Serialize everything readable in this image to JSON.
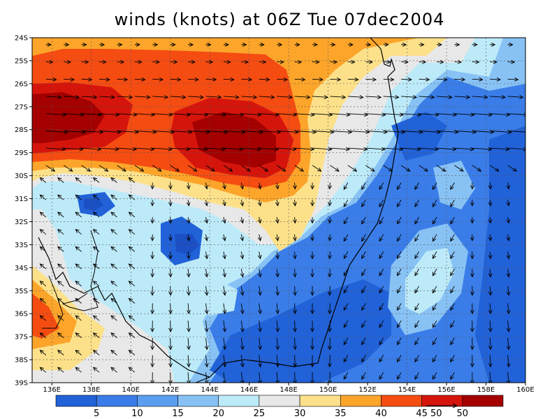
{
  "title": "winds (knots) at 06Z Tue 07dec2004",
  "map": {
    "lat_labels": [
      "24S",
      "25S",
      "26S",
      "27S",
      "28S",
      "29S",
      "30S",
      "31S",
      "32S",
      "33S",
      "34S",
      "35S",
      "36S",
      "37S",
      "38S",
      "39S"
    ],
    "lon_labels": [
      "136E",
      "138E",
      "140E",
      "142E",
      "144E",
      "146E",
      "148E",
      "150E",
      "152E",
      "154E",
      "156E",
      "158E",
      "160E"
    ],
    "lat_range": [
      -39,
      -24
    ],
    "lon_range": [
      135,
      160
    ],
    "grid": "dashed"
  },
  "colorbar": {
    "levels": [
      "5",
      "10",
      "15",
      "20",
      "25",
      "30",
      "35",
      "40",
      "45",
      "50"
    ],
    "colors": [
      "#2162d8",
      "#3a7de8",
      "#5a9ef0",
      "#88c2f5",
      "#bdeaf8",
      "#e8e8e8",
      "#fce18a",
      "#fca52a",
      "#f54c12",
      "#d5150c",
      "#a40000"
    ]
  },
  "vector_reference": {
    "value": "50"
  },
  "regions": [
    {
      "name": "red-core-west",
      "level": 10,
      "lon": 136.5,
      "lat": -28.0
    },
    {
      "name": "red-core-central",
      "level": 10,
      "lon": 145.5,
      "lat": -28.5
    },
    {
      "name": "blue-band-south",
      "level": 1,
      "lon": 150.5,
      "lat": -37.0
    },
    {
      "name": "light-pocket-east",
      "level": 4,
      "lon": 154.5,
      "lat": -35.5
    }
  ]
}
